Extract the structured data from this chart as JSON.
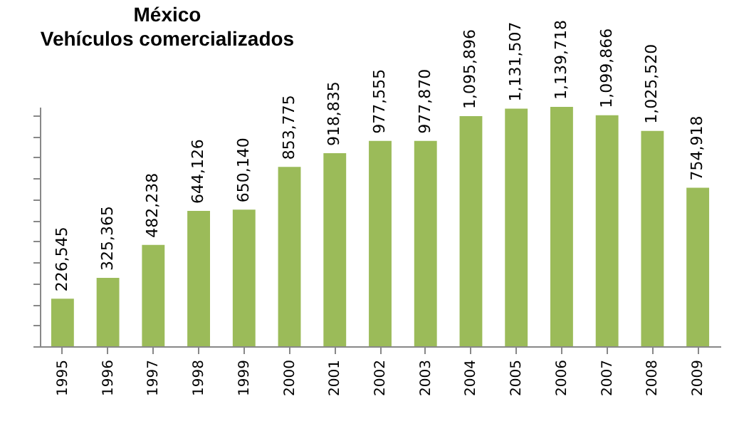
{
  "chart_data": {
    "type": "bar",
    "title": "México",
    "subtitle": "Vehículos comercializados",
    "categories": [
      "1995",
      "1996",
      "1997",
      "1998",
      "1999",
      "2000",
      "2001",
      "2002",
      "2003",
      "2004",
      "2005",
      "2006",
      "2007",
      "2008",
      "2009"
    ],
    "values": [
      226545,
      325365,
      482238,
      644126,
      650140,
      853775,
      918835,
      977555,
      977870,
      1095896,
      1131507,
      1139718,
      1099866,
      1025520,
      754918
    ],
    "value_labels": [
      "226,545",
      "325,365",
      "482,238",
      "644,126",
      "650,140",
      "853,775",
      "918,835",
      "977,555",
      "977,870",
      "1,095,896",
      "1,131,507",
      "1,139,718",
      "1,099,866",
      "1,025,520",
      "754,918"
    ],
    "color": "#9bbb59",
    "grid": false,
    "tick_labels": "x"
  }
}
